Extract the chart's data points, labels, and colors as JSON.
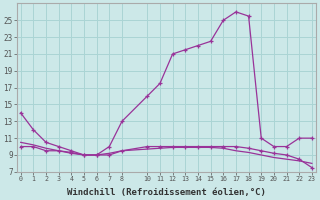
{
  "xlabel": "Windchill (Refroidissement éolien,°C)",
  "background_color": "#cce8e8",
  "grid_color": "#aad4d4",
  "line_color": "#993399",
  "x_wc": [
    0,
    1,
    2,
    3,
    4,
    5,
    6,
    7,
    8,
    10,
    11,
    12,
    13,
    14,
    15,
    16,
    17,
    18,
    19,
    20,
    21,
    22,
    23
  ],
  "y_wc": [
    14,
    12,
    10.5,
    10,
    9.5,
    9,
    9,
    10,
    13,
    16,
    17.5,
    21,
    21.5,
    22,
    22.5,
    25,
    26,
    25.5,
    11,
    10,
    10,
    11,
    11
  ],
  "x_temp": [
    0,
    1,
    2,
    3,
    4,
    5,
    6,
    7,
    8,
    10,
    11,
    12,
    13,
    14,
    15,
    16,
    17,
    18,
    19,
    20,
    21,
    22,
    23
  ],
  "y_temp": [
    10.5,
    10.2,
    9.8,
    9.5,
    9.3,
    9.0,
    9.0,
    9.2,
    9.5,
    9.7,
    9.8,
    9.9,
    9.9,
    9.9,
    9.9,
    9.8,
    9.5,
    9.3,
    9.0,
    8.7,
    8.5,
    8.3,
    8.0
  ],
  "x_temp2": [
    0,
    1,
    2,
    3,
    4,
    5,
    6,
    7,
    8,
    10,
    11,
    12,
    13,
    14,
    15,
    16,
    17,
    18,
    19,
    20,
    21,
    22,
    23
  ],
  "y_temp2": [
    10,
    10,
    9.5,
    9.5,
    9.2,
    9.0,
    9.0,
    9.0,
    9.5,
    10,
    10,
    10,
    10,
    10,
    10,
    10,
    10,
    9.8,
    9.5,
    9.2,
    9.0,
    8.5,
    7.5
  ],
  "ylim": [
    7,
    27
  ],
  "yticks": [
    7,
    9,
    11,
    13,
    15,
    17,
    19,
    21,
    23,
    25
  ],
  "xticks": [
    0,
    1,
    2,
    3,
    4,
    5,
    6,
    7,
    8,
    10,
    11,
    12,
    13,
    14,
    15,
    16,
    17,
    18,
    19,
    20,
    21,
    22,
    23
  ]
}
